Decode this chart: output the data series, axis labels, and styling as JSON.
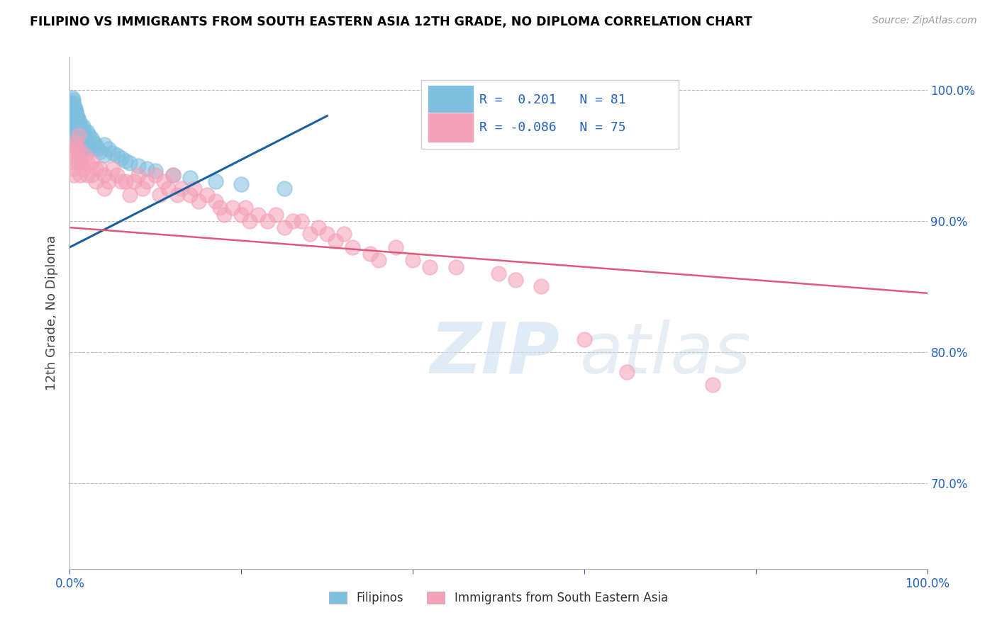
{
  "title": "FILIPINO VS IMMIGRANTS FROM SOUTH EASTERN ASIA 12TH GRADE, NO DIPLOMA CORRELATION CHART",
  "source": "Source: ZipAtlas.com",
  "ylabel": "12th Grade, No Diploma",
  "R_blue": 0.201,
  "N_blue": 81,
  "R_pink": -0.086,
  "N_pink": 75,
  "blue_color": "#7fbfdf",
  "pink_color": "#f4a0b8",
  "blue_line_color": "#1a5fa0",
  "pink_line_color": "#e05878",
  "legend_label_blue": "Filipinos",
  "legend_label_pink": "Immigrants from South Eastern Asia",
  "xlim": [
    0.0,
    1.0
  ],
  "ylim": [
    0.635,
    1.025
  ],
  "blue_trend": [
    0.0,
    0.88,
    0.3,
    0.98
  ],
  "pink_trend": [
    0.0,
    0.895,
    1.0,
    0.845
  ],
  "blue_scatter_x": [
    0.002,
    0.003,
    0.003,
    0.004,
    0.004,
    0.004,
    0.005,
    0.005,
    0.005,
    0.005,
    0.006,
    0.006,
    0.006,
    0.007,
    0.007,
    0.007,
    0.008,
    0.008,
    0.008,
    0.008,
    0.009,
    0.009,
    0.01,
    0.01,
    0.01,
    0.01,
    0.01,
    0.012,
    0.012,
    0.013,
    0.014,
    0.015,
    0.015,
    0.016,
    0.018,
    0.02,
    0.02,
    0.022,
    0.025,
    0.025,
    0.028,
    0.03,
    0.032,
    0.035,
    0.04,
    0.04,
    0.045,
    0.05,
    0.055,
    0.06,
    0.065,
    0.07,
    0.08,
    0.09,
    0.1,
    0.12,
    0.14,
    0.17,
    0.2,
    0.25,
    0.003,
    0.003,
    0.004,
    0.004,
    0.005,
    0.005,
    0.006,
    0.006,
    0.007,
    0.007,
    0.008,
    0.009,
    0.009,
    0.01,
    0.01,
    0.012,
    0.013,
    0.015,
    0.015,
    0.018,
    0.02
  ],
  "blue_scatter_y": [
    0.99,
    0.985,
    0.978,
    0.992,
    0.984,
    0.975,
    0.988,
    0.98,
    0.972,
    0.964,
    0.986,
    0.978,
    0.97,
    0.983,
    0.975,
    0.967,
    0.981,
    0.973,
    0.965,
    0.957,
    0.979,
    0.971,
    0.977,
    0.969,
    0.961,
    0.953,
    0.945,
    0.974,
    0.966,
    0.971,
    0.968,
    0.972,
    0.964,
    0.969,
    0.966,
    0.968,
    0.96,
    0.965,
    0.963,
    0.955,
    0.96,
    0.958,
    0.955,
    0.953,
    0.958,
    0.95,
    0.955,
    0.952,
    0.95,
    0.948,
    0.946,
    0.944,
    0.942,
    0.94,
    0.938,
    0.935,
    0.933,
    0.93,
    0.928,
    0.925,
    0.994,
    0.986,
    0.99,
    0.982,
    0.987,
    0.979,
    0.984,
    0.976,
    0.981,
    0.973,
    0.978,
    0.975,
    0.967,
    0.972,
    0.964,
    0.969,
    0.966,
    0.963,
    0.955,
    0.96,
    0.957
  ],
  "pink_scatter_x": [
    0.002,
    0.003,
    0.004,
    0.005,
    0.006,
    0.007,
    0.008,
    0.009,
    0.01,
    0.01,
    0.012,
    0.014,
    0.015,
    0.018,
    0.02,
    0.02,
    0.025,
    0.025,
    0.03,
    0.03,
    0.035,
    0.04,
    0.04,
    0.045,
    0.05,
    0.055,
    0.06,
    0.065,
    0.07,
    0.075,
    0.08,
    0.085,
    0.09,
    0.1,
    0.105,
    0.11,
    0.115,
    0.12,
    0.125,
    0.13,
    0.14,
    0.145,
    0.15,
    0.16,
    0.17,
    0.175,
    0.18,
    0.19,
    0.2,
    0.205,
    0.21,
    0.22,
    0.23,
    0.24,
    0.25,
    0.26,
    0.27,
    0.28,
    0.29,
    0.3,
    0.31,
    0.32,
    0.33,
    0.35,
    0.36,
    0.38,
    0.4,
    0.42,
    0.45,
    0.5,
    0.52,
    0.55,
    0.6,
    0.65,
    0.75
  ],
  "pink_scatter_y": [
    0.955,
    0.945,
    0.94,
    0.935,
    0.96,
    0.95,
    0.955,
    0.945,
    0.965,
    0.955,
    0.935,
    0.945,
    0.94,
    0.95,
    0.945,
    0.935,
    0.945,
    0.935,
    0.94,
    0.93,
    0.94,
    0.935,
    0.925,
    0.93,
    0.94,
    0.935,
    0.93,
    0.93,
    0.92,
    0.93,
    0.935,
    0.925,
    0.93,
    0.935,
    0.92,
    0.93,
    0.925,
    0.935,
    0.92,
    0.925,
    0.92,
    0.925,
    0.915,
    0.92,
    0.915,
    0.91,
    0.905,
    0.91,
    0.905,
    0.91,
    0.9,
    0.905,
    0.9,
    0.905,
    0.895,
    0.9,
    0.9,
    0.89,
    0.895,
    0.89,
    0.885,
    0.89,
    0.88,
    0.875,
    0.87,
    0.88,
    0.87,
    0.865,
    0.865,
    0.86,
    0.855,
    0.85,
    0.81,
    0.785,
    0.775
  ]
}
